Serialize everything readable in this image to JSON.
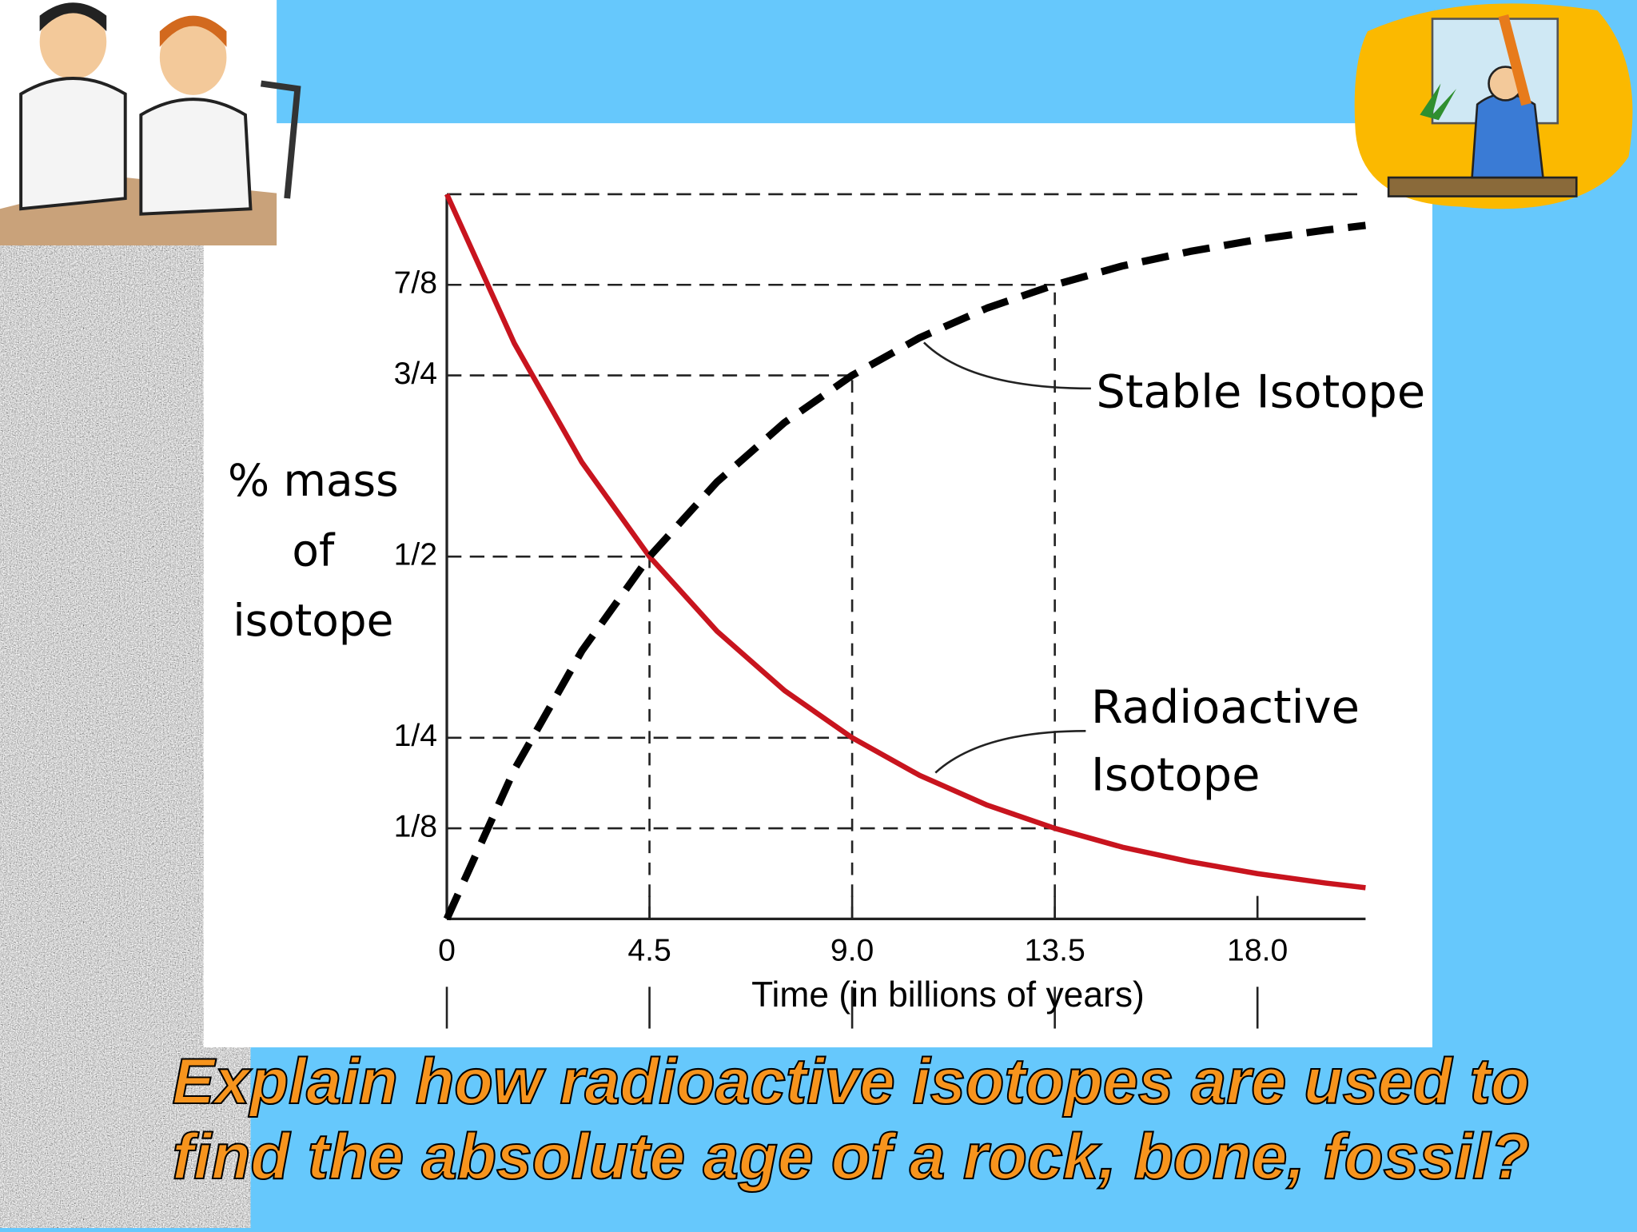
{
  "chart_data": {
    "type": "line",
    "x_label": "Time (in billions of years)",
    "y_label": [
      "% mass",
      "of",
      "isotope"
    ],
    "x": [
      0,
      1.5,
      3,
      4.5,
      6,
      7.5,
      9,
      10.5,
      12,
      13.5,
      15,
      16.5,
      18,
      19.5,
      20.4
    ],
    "series": [
      {
        "name": "Radioactive Isotope",
        "label_lines": [
          "Radioactive",
          "Isotope"
        ],
        "color": "#c8141e",
        "dashed": false,
        "values": [
          1,
          0.794,
          0.63,
          0.5,
          0.397,
          0.315,
          0.25,
          0.198,
          0.157,
          0.125,
          0.099,
          0.079,
          0.0625,
          0.0496,
          0.043
        ]
      },
      {
        "name": "Stable Isotope",
        "label_lines": [
          "Stable Isotope"
        ],
        "color": "#000000",
        "dashed": true,
        "values": [
          0,
          0.206,
          0.37,
          0.5,
          0.603,
          0.685,
          0.75,
          0.802,
          0.843,
          0.875,
          0.901,
          0.921,
          0.9375,
          0.9504,
          0.957
        ]
      }
    ],
    "xlim": [
      0,
      20.4
    ],
    "ylim": [
      0,
      1
    ],
    "xticks": [
      0,
      4.5,
      {
        "value": 9,
        "label": "9.0"
      },
      13.5,
      {
        "value": 18,
        "label": "18.0"
      }
    ],
    "yticks": [
      {
        "value": 0.125,
        "label": "1/8"
      },
      {
        "value": 0.25,
        "label": "1/4"
      },
      {
        "value": 0.5,
        "label": "1/2"
      },
      {
        "value": 0.75,
        "label": "3/4"
      },
      {
        "value": 0.875,
        "label": "7/8"
      }
    ]
  },
  "slide": {
    "question": [
      "Explain how radioactive isotopes are used to",
      "find the absolute age of a rock, bone, fossil?"
    ]
  }
}
